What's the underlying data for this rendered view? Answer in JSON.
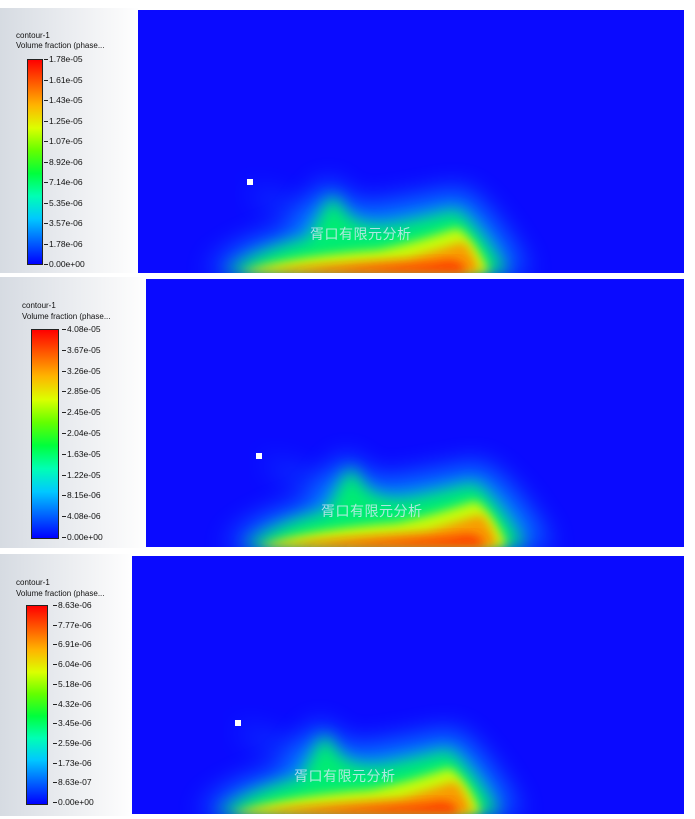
{
  "contour_panels": [
    {
      "contour_name": "contour-1",
      "variable": "Volume fraction (phase...",
      "levels": [
        "1.78e-05",
        "1.61e-05",
        "1.43e-05",
        "1.25e-05",
        "1.07e-05",
        "8.92e-06",
        "7.14e-06",
        "5.35e-06",
        "3.57e-06",
        "1.78e-06",
        "0.00e+00"
      ]
    },
    {
      "contour_name": "contour-1",
      "variable": "Volume fraction (phase...",
      "levels": [
        "4.08e-05",
        "3.67e-05",
        "3.26e-05",
        "2.85e-05",
        "2.45e-05",
        "2.04e-05",
        "1.63e-05",
        "1.22e-05",
        "8.15e-06",
        "4.08e-06",
        "0.00e+00"
      ]
    },
    {
      "contour_name": "contour-1",
      "variable": "Volume fraction (phase...",
      "levels": [
        "8.63e-06",
        "7.77e-06",
        "6.91e-06",
        "6.04e-06",
        "5.18e-06",
        "4.32e-06",
        "3.45e-06",
        "2.59e-06",
        "1.73e-06",
        "8.63e-07",
        "0.00e+00"
      ]
    }
  ],
  "watermark": "胥口有限元分析",
  "colors": {
    "field_background": "#0a0aff",
    "colormap": [
      "#ff0000",
      "#ff5a00",
      "#ffb400",
      "#dcff00",
      "#64ff00",
      "#00ff3c",
      "#00ffb4",
      "#00c8ff",
      "#0064ff",
      "#0000ff"
    ]
  }
}
